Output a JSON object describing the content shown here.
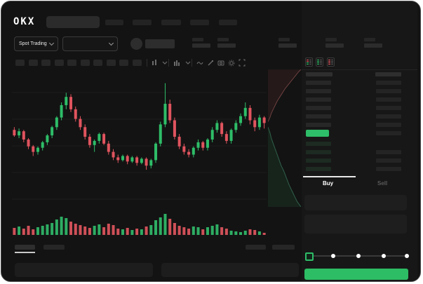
{
  "window": {
    "logo": "OKX"
  },
  "header": {
    "nav_item_count": 5
  },
  "subheader": {
    "market_dropdown_label": "Spot Trading",
    "stat_block_count": 5
  },
  "toolbar": {
    "timeframe_button_count": 10,
    "tool_icon_names": [
      "interval-dropdown-icon",
      "chart-type-dropdown-icon",
      "indicator-wave-icon",
      "draw-pencil-icon",
      "camera-icon",
      "settings-gear-icon",
      "fullscreen-icon"
    ]
  },
  "orderbook": {
    "ask_row_count": 6,
    "bid_row_count": 4,
    "has_header_row": true,
    "view_toggle_icons": [
      "book-both-icon",
      "book-bids-icon",
      "book-asks-icon"
    ]
  },
  "trade_panel": {
    "buy_tab": "Buy",
    "sell_tab": "Sell",
    "slider_dot_count": 4,
    "slider_has_handle": true
  },
  "colors": {
    "green": "#2ebd68",
    "red": "#e0545e",
    "vol_green": "#2ead63",
    "vol_red": "#cf5058",
    "depth_ask_line": "#6e4040",
    "depth_bid_line": "#31604b",
    "depth_ask_fill": "rgba(224,84,94,0.09)",
    "depth_bid_fill": "rgba(46,189,104,0.10)",
    "last_price_bar": "#2ebd68",
    "buy_button": "#2dbd64",
    "bid_row_tint": "#1d2b22",
    "skeleton": "#272727",
    "skeleton_dim": "#242424",
    "grid": "#1d1d1d",
    "icon_gray": "#6b6b6b"
  },
  "chart_data": [
    {
      "type": "candlestick",
      "title": "",
      "x": "time (unlabeled)",
      "y_range": [
        0,
        100
      ],
      "grid": true,
      "candles": [
        [
          56,
          58,
          51,
          52
        ],
        [
          52,
          57,
          50,
          55
        ],
        [
          55,
          56,
          47,
          49
        ],
        [
          49,
          50,
          42,
          44
        ],
        [
          44,
          45,
          37,
          40
        ],
        [
          40,
          44,
          38,
          43
        ],
        [
          43,
          48,
          41,
          47
        ],
        [
          47,
          53,
          45,
          52
        ],
        [
          52,
          59,
          50,
          58
        ],
        [
          58,
          66,
          56,
          65
        ],
        [
          65,
          76,
          63,
          74
        ],
        [
          74,
          83,
          71,
          80
        ],
        [
          80,
          82,
          69,
          71
        ],
        [
          71,
          73,
          62,
          64
        ],
        [
          64,
          66,
          56,
          58
        ],
        [
          58,
          60,
          49,
          51
        ],
        [
          51,
          53,
          43,
          45
        ],
        [
          45,
          49,
          40,
          48
        ],
        [
          48,
          54,
          46,
          53
        ],
        [
          53,
          54,
          45,
          46
        ],
        [
          46,
          48,
          38,
          40
        ],
        [
          40,
          42,
          34,
          36
        ],
        [
          36,
          38,
          32,
          34
        ],
        [
          34,
          38,
          33,
          37
        ],
        [
          37,
          38,
          31,
          33
        ],
        [
          33,
          37,
          32,
          36
        ],
        [
          36,
          37,
          30,
          32
        ],
        [
          32,
          36,
          31,
          35
        ],
        [
          35,
          36,
          27,
          30
        ],
        [
          30,
          35,
          28,
          34
        ],
        [
          34,
          47,
          32,
          46
        ],
        [
          46,
          62,
          44,
          60
        ],
        [
          60,
          90,
          58,
          75
        ],
        [
          75,
          78,
          61,
          63
        ],
        [
          63,
          65,
          49,
          51
        ],
        [
          51,
          53,
          42,
          44
        ],
        [
          44,
          46,
          38,
          40
        ],
        [
          40,
          42,
          36,
          38
        ],
        [
          38,
          44,
          36,
          43
        ],
        [
          43,
          49,
          41,
          47
        ],
        [
          47,
          48,
          41,
          43
        ],
        [
          43,
          50,
          41,
          49
        ],
        [
          49,
          58,
          47,
          56
        ],
        [
          56,
          63,
          54,
          61
        ],
        [
          61,
          62,
          51,
          53
        ],
        [
          53,
          55,
          46,
          48
        ],
        [
          48,
          57,
          46,
          56
        ],
        [
          56,
          63,
          54,
          61
        ],
        [
          61,
          68,
          59,
          66
        ],
        [
          66,
          76,
          64,
          72
        ],
        [
          72,
          74,
          60,
          63
        ],
        [
          63,
          65,
          55,
          58
        ],
        [
          58,
          67,
          56,
          65
        ],
        [
          65,
          66,
          57,
          61
        ]
      ]
    },
    {
      "type": "bar",
      "title": "volume",
      "values": [
        10,
        12,
        9,
        13,
        8,
        11,
        13,
        15,
        17,
        22,
        26,
        24,
        19,
        16,
        14,
        12,
        10,
        13,
        15,
        11,
        16,
        14,
        9,
        8,
        10,
        7,
        9,
        8,
        12,
        14,
        21,
        25,
        30,
        23,
        17,
        13,
        11,
        9,
        12,
        11,
        8,
        11,
        13,
        15,
        11,
        9,
        6,
        5,
        4,
        6,
        8,
        7,
        5,
        3
      ],
      "color_rule": "follows candle direction"
    },
    {
      "type": "area",
      "title": "depth",
      "asks": [
        [
          0,
          38
        ],
        [
          6,
          35
        ],
        [
          10,
          32
        ],
        [
          16,
          29
        ],
        [
          22,
          26
        ],
        [
          28,
          23
        ],
        [
          36,
          20
        ],
        [
          44,
          17
        ],
        [
          52,
          14
        ],
        [
          62,
          11
        ],
        [
          72,
          8
        ],
        [
          82,
          5
        ],
        [
          92,
          2
        ],
        [
          100,
          0
        ]
      ],
      "bids": [
        [
          0,
          42
        ],
        [
          6,
          46
        ],
        [
          10,
          50
        ],
        [
          16,
          54
        ],
        [
          22,
          58
        ],
        [
          28,
          62
        ],
        [
          34,
          66
        ],
        [
          40,
          70
        ],
        [
          48,
          74
        ],
        [
          56,
          79
        ],
        [
          64,
          84
        ],
        [
          72,
          88
        ],
        [
          80,
          92
        ],
        [
          88,
          96
        ],
        [
          100,
          100
        ]
      ]
    }
  ]
}
